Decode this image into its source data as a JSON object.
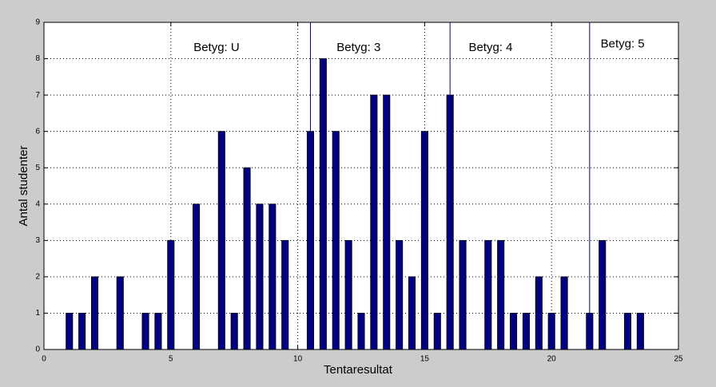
{
  "chart_data": {
    "type": "bar",
    "xlabel": "Tentaresultat",
    "ylabel": "Antal studenter",
    "x": [
      1,
      1.5,
      2,
      3,
      4,
      4.5,
      5,
      6,
      7,
      7.5,
      8,
      8.5,
      9,
      9.5,
      10.5,
      11,
      11.5,
      12,
      12.5,
      13,
      13.5,
      14,
      14.5,
      15,
      15.5,
      16,
      16.5,
      17.5,
      18,
      18.5,
      19,
      19.5,
      20,
      20.5,
      21.5,
      22,
      23,
      23.5
    ],
    "values": [
      1,
      1,
      2,
      2,
      1,
      1,
      3,
      4,
      6,
      1,
      5,
      4,
      4,
      3,
      6,
      8,
      6,
      3,
      1,
      7,
      7,
      3,
      2,
      6,
      1,
      7,
      3,
      3,
      3,
      1,
      1,
      2,
      1,
      2,
      1,
      3,
      1,
      1
    ],
    "color": "#000080",
    "thresholds": [
      10.5,
      16,
      21.5
    ],
    "annotations": [
      {
        "text": "Betyg: U",
        "x": 6.8,
        "y": 8.3
      },
      {
        "text": "Betyg: 3",
        "x": 12.4,
        "y": 8.3
      },
      {
        "text": "Betyg: 4",
        "x": 17.6,
        "y": 8.3
      },
      {
        "text": "Betyg: 5",
        "x": 22.8,
        "y": 8.4
      }
    ],
    "xlim": [
      0,
      25
    ],
    "xticks": [
      0,
      5,
      10,
      15,
      20,
      25
    ],
    "ylim": [
      0,
      9
    ],
    "yticks": [
      0,
      1,
      2,
      3,
      4,
      5,
      6,
      7,
      8,
      9
    ],
    "grid": true
  }
}
